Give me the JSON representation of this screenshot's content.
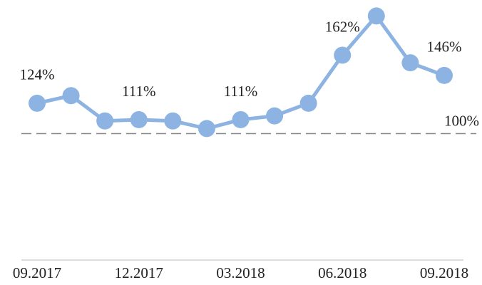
{
  "chart_data": {
    "type": "line",
    "categories": [
      "09.2017",
      null,
      null,
      "12.2017",
      null,
      null,
      "03.2018",
      null,
      null,
      "06.2018",
      null,
      null,
      "09.2018"
    ],
    "series": [
      {
        "color": "#8db3e2",
        "values": [
          124,
          130,
          110,
          111,
          110,
          104,
          111,
          114,
          124,
          162,
          193,
          156,
          146
        ],
        "value_labels": [
          "124%",
          null,
          null,
          "111%",
          null,
          null,
          "111%",
          null,
          null,
          "162%",
          null,
          null,
          "146%"
        ]
      }
    ],
    "ylim": [
      0,
      200
    ],
    "reference_line": {
      "value": 100,
      "label": "100%"
    }
  }
}
